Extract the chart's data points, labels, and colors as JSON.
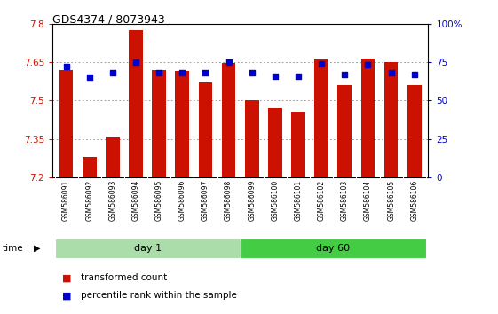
{
  "title": "GDS4374 / 8073943",
  "samples": [
    "GSM586091",
    "GSM586092",
    "GSM586093",
    "GSM586094",
    "GSM586095",
    "GSM586096",
    "GSM586097",
    "GSM586098",
    "GSM586099",
    "GSM586100",
    "GSM586101",
    "GSM586102",
    "GSM586103",
    "GSM586104",
    "GSM586105",
    "GSM586106"
  ],
  "transformed_counts": [
    7.62,
    7.28,
    7.355,
    7.775,
    7.62,
    7.615,
    7.57,
    7.645,
    7.5,
    7.47,
    7.455,
    7.66,
    7.56,
    7.665,
    7.65,
    7.56
  ],
  "percentile_ranks": [
    72,
    65,
    68,
    75,
    68,
    68,
    68,
    75,
    68,
    66,
    66,
    74,
    67,
    73,
    68,
    67
  ],
  "day1_count": 8,
  "day60_count": 8,
  "day1_label": "day 1",
  "day60_label": "day 60",
  "ylim_left": [
    7.2,
    7.8
  ],
  "ylim_right": [
    0,
    100
  ],
  "yticks_left": [
    7.2,
    7.35,
    7.5,
    7.65,
    7.8
  ],
  "yticks_right": [
    0,
    25,
    50,
    75,
    100
  ],
  "ytick_labels_right": [
    "0",
    "25",
    "50",
    "75",
    "100%"
  ],
  "bar_color": "#cc1100",
  "dot_color": "#0000cc",
  "grid_color": "#888888",
  "bg_color": "#ffffff",
  "plot_bg_color": "#ffffff",
  "label_bar": "transformed count",
  "label_dot": "percentile rank within the sample",
  "time_label": "time",
  "day1_bg": "#aaddaa",
  "day60_bg": "#44cc44",
  "xtick_bg": "#cccccc",
  "xtick_border": "#888888"
}
